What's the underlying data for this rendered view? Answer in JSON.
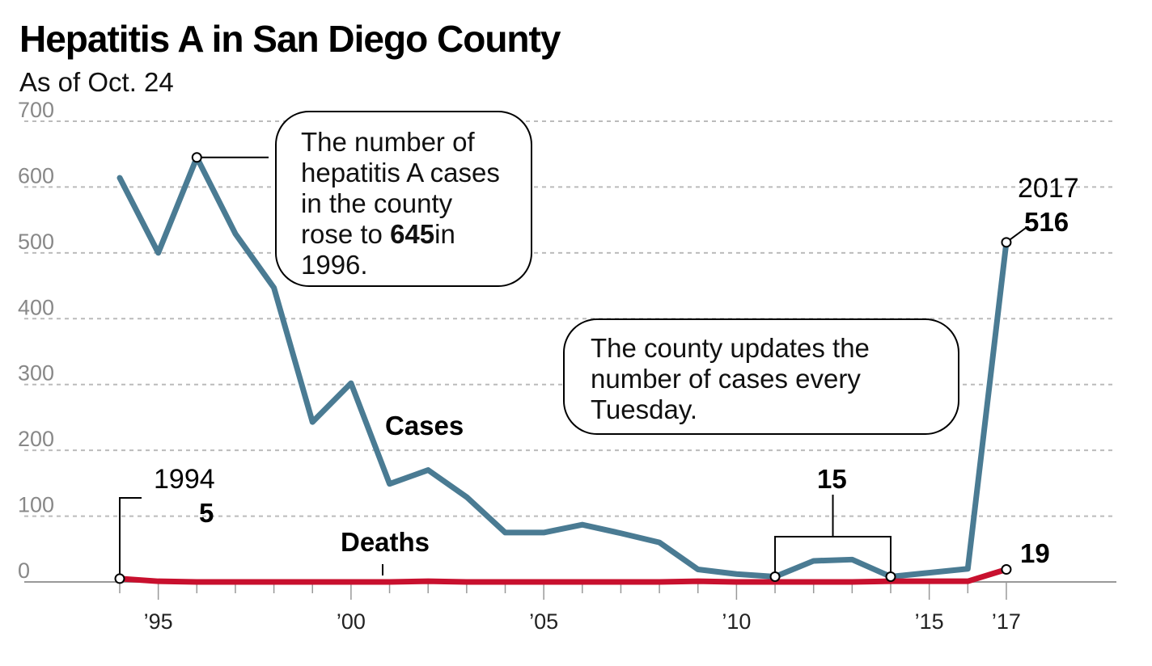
{
  "chart_data": {
    "type": "line",
    "title": "Hepatitis A in San Diego County",
    "subtitle": "As of Oct. 24",
    "ylim": [
      0,
      700
    ],
    "xlim": [
      1994,
      2017
    ],
    "grid": true,
    "y_ticks": [
      "0",
      "100",
      "200",
      "300",
      "400",
      "500",
      "600",
      "700"
    ],
    "x_ticks": [
      {
        "label": "’95",
        "x": 1995
      },
      {
        "label": "’00",
        "x": 2000
      },
      {
        "label": "’05",
        "x": 2005
      },
      {
        "label": "’10",
        "x": 2010
      },
      {
        "label": "’15",
        "x": 2015
      },
      {
        "label": "’17",
        "x": 2017
      }
    ],
    "x": [
      1994,
      1995,
      1996,
      1997,
      1998,
      1999,
      2000,
      2001,
      2002,
      2003,
      2004,
      2005,
      2006,
      2007,
      2008,
      2009,
      2010,
      2011,
      2012,
      2013,
      2014,
      2015,
      2016,
      2017
    ],
    "series": [
      {
        "name": "Cases",
        "color": "#4a7b93",
        "values": [
          614,
          500,
          645,
          529,
          447,
          243,
          302,
          149,
          170,
          129,
          75,
          75,
          87,
          74,
          60,
          19,
          12,
          8,
          32,
          34,
          8,
          14,
          20,
          516
        ]
      },
      {
        "name": "Deaths",
        "color": "#c8102e",
        "values": [
          5,
          1,
          0,
          0,
          0,
          0,
          0,
          0,
          1,
          0,
          0,
          0,
          0,
          0,
          0,
          1,
          0,
          0,
          0,
          0,
          1,
          1,
          1,
          19
        ]
      }
    ],
    "annotations": {
      "callout_1": [
        "The number of",
        "hepatitis A cases",
        "in the county",
        "rose to ",
        "645",
        "in",
        "1996."
      ],
      "callout_2": [
        "The county updates the",
        "number of cases every",
        "Tuesday."
      ],
      "start_year": "1994",
      "start_value": "5",
      "end_year": "2017",
      "end_value": "516",
      "deaths_end_value": "19",
      "bracket_value": "15"
    }
  }
}
